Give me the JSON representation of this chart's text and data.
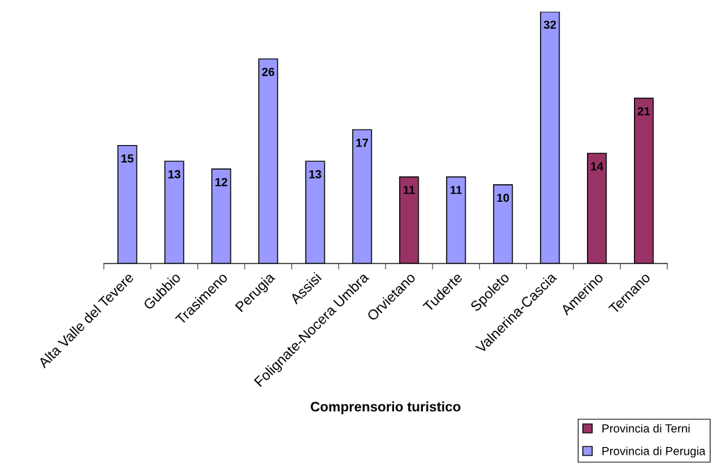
{
  "chart_data": {
    "type": "bar",
    "xlabel": "Comprensorio turistico",
    "categories": [
      "Alta Valle del Tevere",
      "Gubbio",
      "Trasimeno",
      "Perugia",
      "Assisi",
      "Folignate-Nocera Umbra",
      "Orvietano",
      "Tuderte",
      "Spoleto",
      "Valnerina-Cascia",
      "Amerino",
      "Ternano"
    ],
    "series": [
      {
        "name": "Provincia di Terni",
        "color": "#993366",
        "values": [
          null,
          null,
          null,
          null,
          null,
          null,
          11,
          null,
          null,
          null,
          14,
          21
        ]
      },
      {
        "name": "Provincia di Perugia",
        "color": "#9999ff",
        "values": [
          15,
          13,
          12,
          26,
          13,
          17,
          null,
          11,
          10,
          32,
          null,
          null
        ]
      }
    ],
    "ylim": [
      0,
      32
    ],
    "data_labels": true,
    "legend": "bottom right",
    "grid": false
  }
}
